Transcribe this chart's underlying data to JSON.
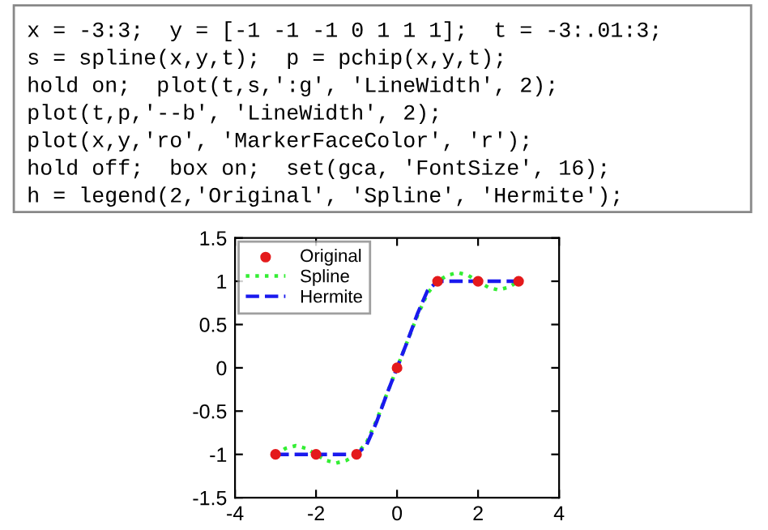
{
  "chart_data": {
    "type": "line",
    "annotations": [
      "x = -3:3;  y = [-1 -1 -1 0 1 1 1];  t = -3:.01:3;",
      "s = spline(x,y,t);  p = pchip(x,y,t);",
      "hold on;  plot(t,s,':g', 'LineWidth', 2);",
      "plot(t,p,'--b', 'LineWidth', 2);",
      "plot(x,y,'ro', 'MarkerFaceColor', 'r');",
      "hold off;  box on;  set(gca, 'FontSize', 16);",
      "h = legend(2,'Original', 'Spline', 'Hermite');"
    ],
    "series": [
      {
        "name": "Original",
        "type": "scatter",
        "color": "#e41a1c",
        "marker": "circle",
        "x": [
          -3,
          -2,
          -1,
          0,
          1,
          2,
          3
        ],
        "values": [
          -1,
          -1,
          -1,
          0,
          1,
          1,
          1
        ]
      },
      {
        "name": "Spline",
        "color": "#33ee33",
        "line_style": "dotted",
        "x": [
          -3,
          -2.75,
          -2.5,
          -2.25,
          -2,
          -1.75,
          -1.5,
          -1.25,
          -1,
          -0.75,
          -0.5,
          -0.25,
          0,
          0.25,
          0.5,
          0.75,
          1,
          1.25,
          1.5,
          1.75,
          2,
          2.25,
          2.5,
          2.75,
          3
        ],
        "values": [
          -1,
          -0.93,
          -0.9,
          -0.93,
          -1,
          -1.07,
          -1.1,
          -1.07,
          -1,
          -0.86,
          -0.6,
          -0.3,
          0,
          0.3,
          0.6,
          0.86,
          1,
          1.07,
          1.1,
          1.07,
          1,
          0.93,
          0.9,
          0.93,
          1
        ]
      },
      {
        "name": "Hermite",
        "color": "#1a1aee",
        "line_style": "dashed",
        "x": [
          -3,
          -2,
          -1,
          -0.75,
          -0.5,
          -0.25,
          0,
          0.25,
          0.5,
          0.75,
          1,
          2,
          3
        ],
        "values": [
          -1,
          -1,
          -1,
          -0.89,
          -0.62,
          -0.3,
          0,
          0.3,
          0.62,
          0.89,
          1,
          1,
          1
        ]
      }
    ],
    "xlim": [
      -4,
      4
    ],
    "xticks": [
      -4,
      -2,
      0,
      2,
      4
    ],
    "ylim": [
      -1.5,
      1.5
    ],
    "yticks": [
      -1.5,
      -1,
      -0.5,
      0,
      0.5,
      1,
      1.5
    ],
    "grid": false,
    "legend": "top left"
  }
}
